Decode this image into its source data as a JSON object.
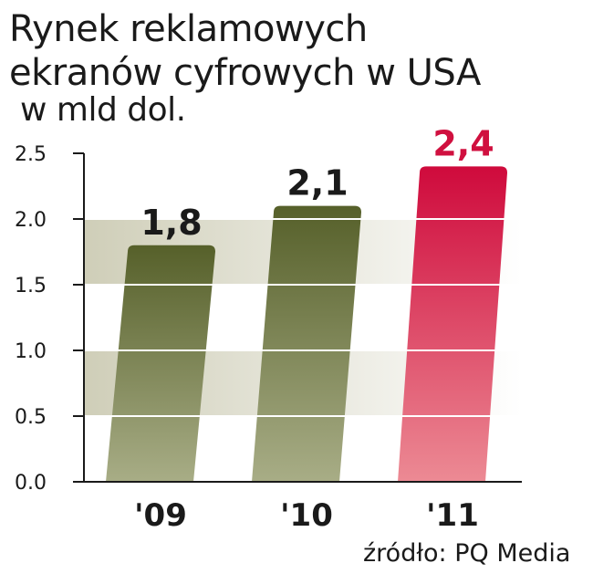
{
  "header": {
    "title": "Rynek reklamowych ekranów cyfrowych w USA",
    "unit": "w mld dol."
  },
  "source": "źródło: PQ Media",
  "chart_data": {
    "type": "bar",
    "title": "Rynek reklamowych ekranów cyfrowych w USA",
    "ylabel": "w mld dol.",
    "xlabel": "",
    "categories": [
      "'09",
      "'10",
      "'11"
    ],
    "values": [
      1.8,
      2.1,
      2.4
    ],
    "value_labels": [
      "1,8",
      "2,1",
      "2,4"
    ],
    "ylim": [
      0,
      2.5
    ],
    "yticks": [
      "0.0",
      "0.5",
      "1.0",
      "1.5",
      "2.0",
      "2.5"
    ],
    "grid": true,
    "legend": "none",
    "colors": {
      "bars": [
        "#56602a",
        "#56602a",
        "#cf0a3c"
      ],
      "bars_fade": [
        "#a8ad86",
        "#a8ad86",
        "#ec8a94"
      ],
      "value_labels": [
        "#1a1a1a",
        "#1a1a1a",
        "#d0103f"
      ],
      "band": "#cfceb8",
      "grid": "#ffffff",
      "axis": "#1a1a1a"
    }
  }
}
